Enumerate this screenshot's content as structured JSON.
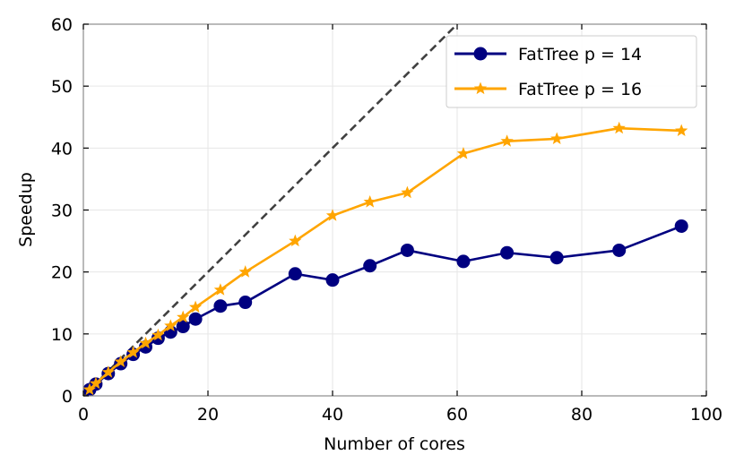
{
  "chart_data": {
    "type": "line",
    "title": "",
    "xlabel": "Number of cores",
    "ylabel": "Speedup",
    "xlim": [
      0,
      100
    ],
    "ylim": [
      0,
      60
    ],
    "xticks": [
      0,
      20,
      40,
      60,
      80,
      100
    ],
    "yticks": [
      0,
      10,
      20,
      30,
      40,
      50,
      60
    ],
    "grid": true,
    "legend_position": "top-right",
    "reference_line": {
      "style": "dashed",
      "color": "#404040",
      "x": [
        0,
        60
      ],
      "y": [
        0,
        60
      ]
    },
    "series": [
      {
        "name": "FatTree p = 14",
        "color": "#000080",
        "marker": "circle",
        "x": [
          1,
          2,
          4,
          6,
          8,
          10,
          12,
          14,
          16,
          18,
          22,
          26,
          34,
          40,
          46,
          52,
          61,
          68,
          76,
          86,
          96
        ],
        "y": [
          1,
          1.9,
          3.6,
          5.2,
          6.7,
          7.9,
          9.3,
          10.3,
          11.2,
          12.4,
          14.5,
          15.1,
          19.7,
          18.7,
          21,
          23.5,
          21.7,
          23.1,
          22.3,
          23.5,
          27.4
        ]
      },
      {
        "name": "FatTree p = 16",
        "color": "#FFA500",
        "marker": "star",
        "x": [
          1,
          2,
          4,
          6,
          8,
          10,
          12,
          14,
          16,
          18,
          22,
          26,
          34,
          40,
          46,
          52,
          61,
          68,
          76,
          86,
          96
        ],
        "y": [
          1,
          2,
          3.8,
          5.5,
          7,
          8.5,
          9.8,
          11.3,
          12.7,
          14.3,
          17.1,
          20,
          25,
          29.1,
          31.3,
          32.8,
          39.1,
          41.1,
          41.5,
          43.2,
          42.8
        ]
      }
    ]
  }
}
